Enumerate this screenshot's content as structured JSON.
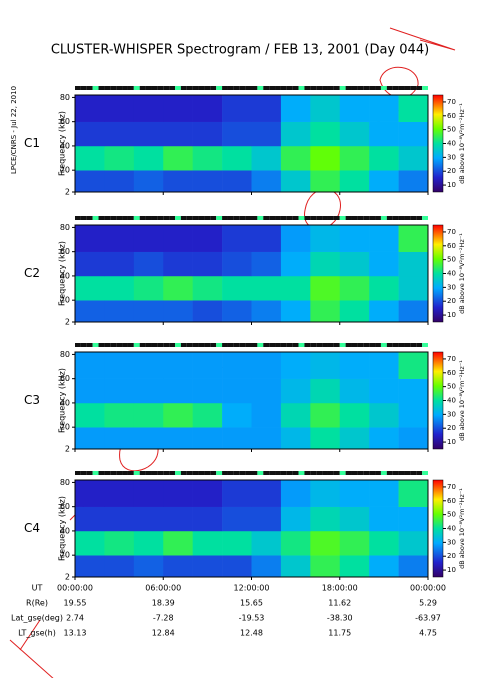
{
  "title": "CLUSTER-WHISPER Spectrogram / FEB 13, 2001 (Day 044)",
  "side_label": "LPCE/CNRS - Jul 22, 2010",
  "x_row_label": "UT",
  "ephemeris": [
    {
      "name": "R(Re)",
      "values": [
        "19.55",
        "18.39",
        "15.65",
        "11.62",
        "5.29"
      ]
    },
    {
      "name": "Lat_gse(deg)",
      "values": [
        "2.74",
        "-7.28",
        "-19.53",
        "-38.30",
        "-63.97"
      ]
    },
    {
      "name": "LT_gse(h)",
      "values": [
        "13.13",
        "12.84",
        "12.48",
        "11.75",
        "4.75"
      ]
    }
  ],
  "chart_data": [
    {
      "type": "spectrogram",
      "label": "C1",
      "label_color": "#000000",
      "y_label": "Frequency (kHz)",
      "colorbar_label": "dB above 10⁻⁸V²m⁻²Hz⁻¹",
      "xlim": [
        0,
        24
      ],
      "xticks": [
        0,
        6,
        12,
        18,
        24
      ],
      "ylim": [
        2,
        82
      ],
      "yticks": [
        2,
        20,
        40,
        60,
        80
      ],
      "clim": [
        5,
        75
      ],
      "cticks": [
        10,
        20,
        30,
        40,
        50,
        60,
        70
      ],
      "freq_bins": [
        2,
        20,
        40,
        60,
        82
      ],
      "values": [
        [
          20,
          20,
          22,
          20,
          20,
          20,
          25,
          35,
          45,
          40,
          30,
          25
        ],
        [
          40,
          42,
          40,
          45,
          42,
          40,
          35,
          45,
          50,
          45,
          40,
          35
        ],
        [
          18,
          18,
          18,
          18,
          18,
          20,
          20,
          35,
          40,
          35,
          30,
          30
        ],
        [
          15,
          15,
          15,
          15,
          15,
          18,
          18,
          30,
          35,
          30,
          30,
          40
        ]
      ]
    },
    {
      "type": "spectrogram",
      "label": "C2",
      "label_color": "#000000",
      "y_label": "Frequency (kHz)",
      "colorbar_label": "dB above 10⁻⁸V²m⁻²Hz⁻¹",
      "xlim": [
        0,
        24
      ],
      "xticks": [
        0,
        6,
        12,
        18,
        24
      ],
      "ylim": [
        2,
        82
      ],
      "yticks": [
        2,
        20,
        40,
        60,
        80
      ],
      "clim": [
        5,
        75
      ],
      "cticks": [
        10,
        20,
        30,
        40,
        50,
        60,
        70
      ],
      "freq_bins": [
        2,
        20,
        40,
        60,
        82
      ],
      "values": [
        [
          22,
          22,
          22,
          22,
          20,
          22,
          25,
          30,
          45,
          40,
          30,
          25
        ],
        [
          40,
          40,
          42,
          45,
          42,
          40,
          40,
          40,
          48,
          45,
          40,
          35
        ],
        [
          18,
          18,
          20,
          18,
          18,
          20,
          22,
          30,
          38,
          35,
          30,
          35
        ],
        [
          15,
          15,
          15,
          15,
          15,
          18,
          18,
          28,
          32,
          30,
          30,
          45
        ]
      ]
    },
    {
      "type": "spectrogram",
      "label": "C3",
      "label_color": "#22bb88",
      "y_label": "Frequency (kHz)",
      "colorbar_label": "dB above 10⁻⁸V²m⁻²Hz⁻¹",
      "xlim": [
        0,
        24
      ],
      "xticks": [
        0,
        6,
        12,
        18,
        24
      ],
      "ylim": [
        2,
        82
      ],
      "yticks": [
        2,
        20,
        40,
        60,
        80
      ],
      "clim": [
        5,
        75
      ],
      "cticks": [
        10,
        20,
        30,
        40,
        50,
        60,
        70
      ],
      "freq_bins": [
        2,
        20,
        40,
        60,
        82
      ],
      "values": [
        [
          28,
          28,
          28,
          28,
          28,
          28,
          28,
          32,
          40,
          35,
          30,
          28
        ],
        [
          40,
          42,
          42,
          45,
          42,
          30,
          28,
          38,
          45,
          40,
          35,
          30
        ],
        [
          28,
          28,
          28,
          28,
          28,
          28,
          28,
          32,
          38,
          32,
          30,
          30
        ],
        [
          28,
          28,
          28,
          28,
          28,
          28,
          28,
          30,
          32,
          30,
          30,
          42
        ]
      ]
    },
    {
      "type": "spectrogram",
      "label": "C4",
      "label_color": "#000000",
      "y_label": "Frequency (kHz)",
      "colorbar_label": "dB above 10⁻⁸V²m⁻²Hz⁻¹",
      "xlim": [
        0,
        24
      ],
      "ylim": [
        2,
        82
      ],
      "yticks": [
        2,
        20,
        40,
        60,
        80
      ],
      "clim": [
        5,
        75
      ],
      "cticks": [
        10,
        20,
        30,
        40,
        50,
        60,
        70
      ],
      "xticks": [
        {
          "value": 0,
          "label": "00:00:00"
        },
        {
          "value": 6,
          "label": "06:00:00"
        },
        {
          "value": 12,
          "label": "12:00:00"
        },
        {
          "value": 18,
          "label": "18:00:00"
        },
        {
          "value": 24,
          "label": "00:00:00"
        }
      ],
      "freq_bins": [
        2,
        20,
        40,
        60,
        82
      ],
      "values": [
        [
          20,
          20,
          22,
          20,
          20,
          20,
          25,
          35,
          45,
          40,
          30,
          25
        ],
        [
          40,
          42,
          40,
          45,
          40,
          40,
          35,
          42,
          48,
          45,
          40,
          35
        ],
        [
          18,
          18,
          18,
          18,
          18,
          20,
          20,
          32,
          38,
          35,
          30,
          30
        ],
        [
          15,
          15,
          15,
          15,
          15,
          18,
          18,
          28,
          32,
          30,
          30,
          42
        ]
      ]
    }
  ]
}
